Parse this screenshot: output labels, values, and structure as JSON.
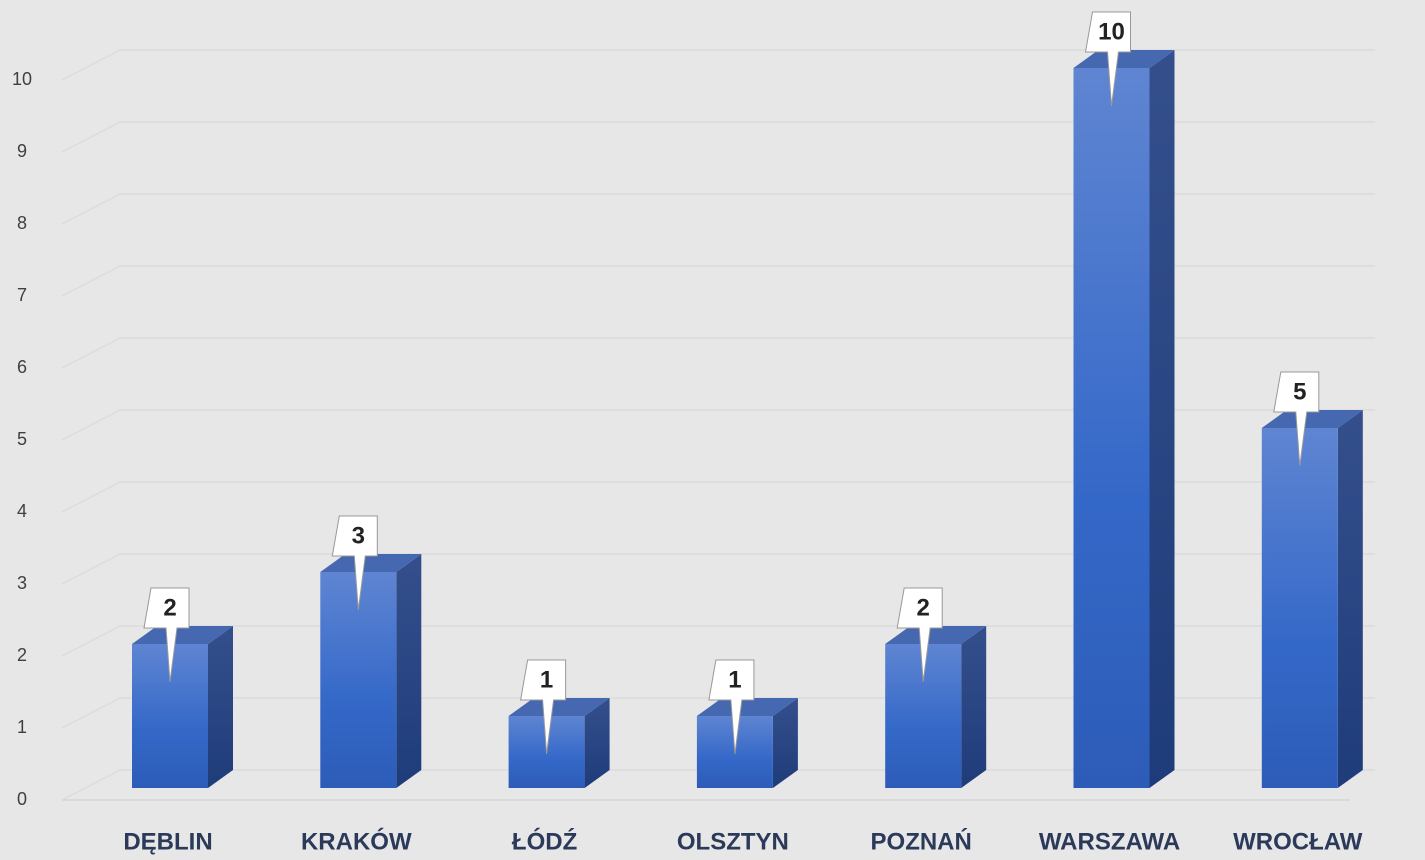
{
  "chart_data": {
    "type": "bar3d",
    "categories": [
      "DĘBLIN",
      "KRAKÓW",
      "ŁÓDŹ",
      "OLSZTYN",
      "POZNAŃ",
      "WARSZAWA",
      "WROCŁAW"
    ],
    "values": [
      2,
      3,
      1,
      1,
      2,
      10,
      5
    ],
    "color": "#4472c4",
    "ylim": [
      0,
      11
    ],
    "yticks": [
      0,
      1,
      2,
      3,
      4,
      5,
      6,
      7,
      8,
      9,
      10
    ],
    "grid": true
  }
}
